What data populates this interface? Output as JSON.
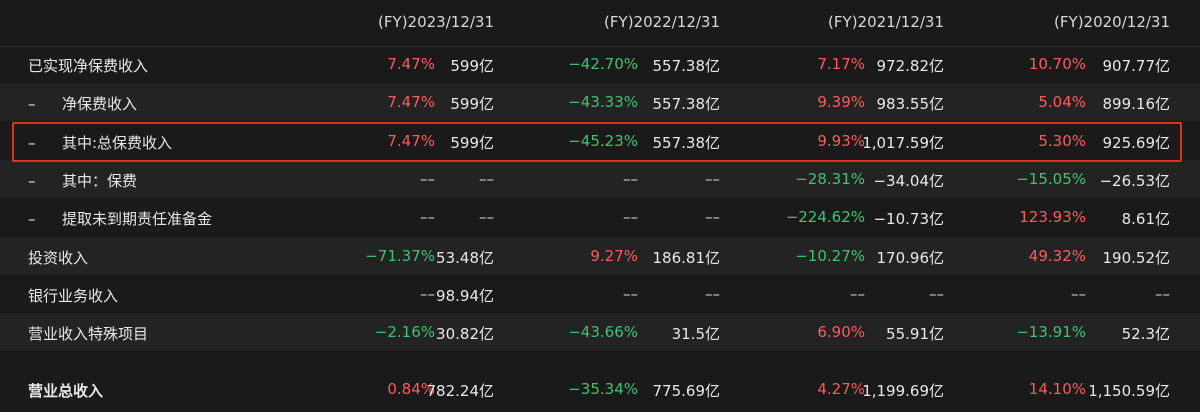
{
  "columns": [
    "(FY)2023/12/31",
    "(FY)2022/12/31",
    "(FY)2021/12/31",
    "(FY)2020/12/31"
  ],
  "rows": [
    {
      "label": "已实现净保费收入",
      "prefix": "",
      "cells": [
        {
          "pct": "7.47%",
          "dir": "pos",
          "val": "599亿"
        },
        {
          "pct": "−42.70%",
          "dir": "neg",
          "val": "557.38亿"
        },
        {
          "pct": "7.17%",
          "dir": "pos",
          "val": "972.82亿"
        },
        {
          "pct": "10.70%",
          "dir": "pos",
          "val": "907.77亿"
        }
      ]
    },
    {
      "label": "净保费收入",
      "prefix": "–",
      "cells": [
        {
          "pct": "7.47%",
          "dir": "pos",
          "val": "599亿"
        },
        {
          "pct": "−43.33%",
          "dir": "neg",
          "val": "557.38亿"
        },
        {
          "pct": "9.39%",
          "dir": "pos",
          "val": "983.55亿"
        },
        {
          "pct": "5.04%",
          "dir": "pos",
          "val": "899.16亿"
        }
      ]
    },
    {
      "label": "其中:总保费收入",
      "prefix": "–",
      "cells": [
        {
          "pct": "7.47%",
          "dir": "pos",
          "val": "599亿"
        },
        {
          "pct": "−45.23%",
          "dir": "neg",
          "val": "557.38亿"
        },
        {
          "pct": "9.93%",
          "dir": "pos",
          "val": "1,017.59亿"
        },
        {
          "pct": "5.30%",
          "dir": "pos",
          "val": "925.69亿"
        }
      ]
    },
    {
      "label": "其中：保费",
      "prefix": "–",
      "cells": [
        {
          "pct": "––",
          "dir": "none",
          "val": "––"
        },
        {
          "pct": "––",
          "dir": "none",
          "val": "––"
        },
        {
          "pct": "−28.31%",
          "dir": "neg",
          "val": "−34.04亿"
        },
        {
          "pct": "−15.05%",
          "dir": "neg",
          "val": "−26.53亿"
        }
      ]
    },
    {
      "label": "提取未到期责任准备金",
      "prefix": "–",
      "cells": [
        {
          "pct": "––",
          "dir": "none",
          "val": "––"
        },
        {
          "pct": "––",
          "dir": "none",
          "val": "––"
        },
        {
          "pct": "−224.62%",
          "dir": "neg",
          "val": "−10.73亿"
        },
        {
          "pct": "123.93%",
          "dir": "pos",
          "val": "8.61亿"
        }
      ]
    },
    {
      "label": "投资收入",
      "prefix": "",
      "cells": [
        {
          "pct": "−71.37%",
          "dir": "neg",
          "val": "53.48亿"
        },
        {
          "pct": "9.27%",
          "dir": "pos",
          "val": "186.81亿"
        },
        {
          "pct": "−10.27%",
          "dir": "neg",
          "val": "170.96亿"
        },
        {
          "pct": "49.32%",
          "dir": "pos",
          "val": "190.52亿"
        }
      ]
    },
    {
      "label": "银行业务收入",
      "prefix": "",
      "cells": [
        {
          "pct": "––",
          "dir": "none",
          "val": "98.94亿"
        },
        {
          "pct": "––",
          "dir": "none",
          "val": "––"
        },
        {
          "pct": "––",
          "dir": "none",
          "val": "––"
        },
        {
          "pct": "––",
          "dir": "none",
          "val": "––"
        }
      ]
    },
    {
      "label": "营业收入特殊项目",
      "prefix": "",
      "cells": [
        {
          "pct": "−2.16%",
          "dir": "neg",
          "val": "30.82亿"
        },
        {
          "pct": "−43.66%",
          "dir": "neg",
          "val": "31.5亿"
        },
        {
          "pct": "6.90%",
          "dir": "pos",
          "val": "55.91亿"
        },
        {
          "pct": "−13.91%",
          "dir": "neg",
          "val": "52.3亿"
        }
      ]
    },
    {
      "label": "营业总收入",
      "prefix": "",
      "cells": [
        {
          "pct": "0.84%",
          "dir": "pos",
          "val": "782.24亿"
        },
        {
          "pct": "−35.34%",
          "dir": "neg",
          "val": "775.69亿"
        },
        {
          "pct": "4.27%",
          "dir": "pos",
          "val": "1,199.69亿"
        },
        {
          "pct": "14.10%",
          "dir": "pos",
          "val": "1,150.59亿"
        }
      ]
    }
  ],
  "colors": {
    "positive": "#ff5a5a",
    "negative": "#3ec46d",
    "highlight_border": "#e0321e",
    "background": "#1a1a1a"
  }
}
